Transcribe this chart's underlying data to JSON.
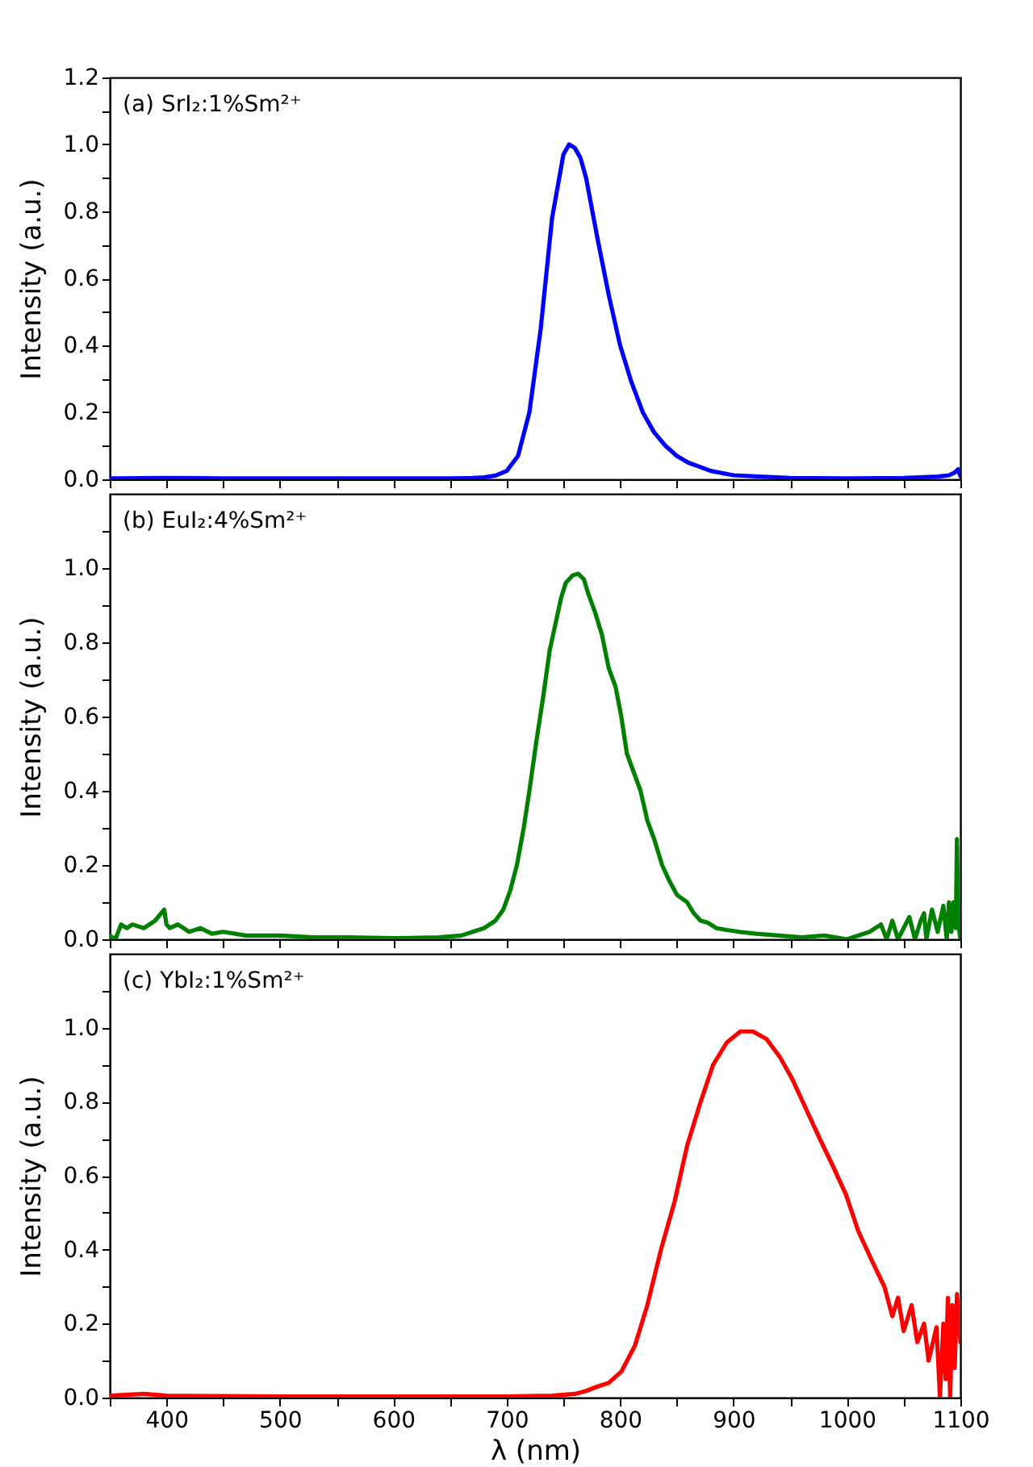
{
  "chart_data": [
    {
      "type": "line",
      "annotations": [
        "(a) SrI₂:1%Sm²⁺"
      ],
      "ylabel": "Intensity (a.u.)",
      "tick_labels": "y",
      "xlim": [
        350,
        1100
      ],
      "xticks": [
        {
          "value": 350,
          "label": null
        },
        400,
        {
          "value": 450,
          "label": null
        },
        500,
        {
          "value": 550,
          "label": null
        },
        600,
        {
          "value": 650,
          "label": null
        },
        700,
        {
          "value": 750,
          "label": null
        },
        800,
        {
          "value": 850,
          "label": null
        },
        900,
        {
          "value": 950,
          "label": null
        },
        1000,
        {
          "value": 1050,
          "label": null
        },
        1100
      ],
      "ylim": [
        0,
        1.2
      ],
      "yticks": [
        {
          "value": 0,
          "label": "0.0"
        },
        {
          "value": 0.1,
          "label": null
        },
        0.2,
        {
          "value": 0.3,
          "label": null
        },
        0.4,
        {
          "value": 0.5,
          "label": null
        },
        0.6,
        {
          "value": 0.7,
          "label": null
        },
        0.8,
        {
          "value": 0.9,
          "label": null
        },
        {
          "value": 1,
          "label": "1.0"
        },
        {
          "value": 1.1,
          "label": null
        },
        1.2
      ],
      "series": [
        {
          "color": "#0000ff",
          "x": [
            350,
            400,
            450,
            500,
            550,
            600,
            650,
            670,
            680,
            690,
            700,
            710,
            720,
            730,
            740,
            750,
            755,
            760,
            765,
            770,
            780,
            790,
            800,
            810,
            820,
            830,
            840,
            850,
            860,
            880,
            900,
            950,
            1000,
            1050,
            1080,
            1090,
            1095,
            1098,
            1100
          ],
          "values": [
            0.003,
            0.004,
            0.003,
            0.003,
            0.003,
            0.003,
            0.003,
            0.004,
            0.006,
            0.011,
            0.025,
            0.07,
            0.2,
            0.45,
            0.78,
            0.97,
            1.0,
            0.99,
            0.96,
            0.9,
            0.72,
            0.55,
            0.4,
            0.29,
            0.2,
            0.14,
            0.1,
            0.07,
            0.05,
            0.025,
            0.012,
            0.004,
            0.003,
            0.004,
            0.008,
            0.012,
            0.02,
            0.03,
            0.01
          ]
        }
      ]
    },
    {
      "type": "line",
      "annotations": [
        "(b) EuI₂:4%Sm²⁺"
      ],
      "ylabel": "Intensity (a.u.)",
      "tick_labels": "y",
      "xlim": [
        350,
        1100
      ],
      "xticks": [
        {
          "value": 350,
          "label": null
        },
        400,
        {
          "value": 450,
          "label": null
        },
        500,
        {
          "value": 550,
          "label": null
        },
        600,
        {
          "value": 650,
          "label": null
        },
        700,
        {
          "value": 750,
          "label": null
        },
        800,
        {
          "value": 850,
          "label": null
        },
        900,
        {
          "value": 950,
          "label": null
        },
        1000,
        {
          "value": 1050,
          "label": null
        },
        1100
      ],
      "ylim": [
        0,
        1.2
      ],
      "yticks": [
        {
          "value": 0,
          "label": "0.0"
        },
        {
          "value": 0.1,
          "label": null
        },
        0.2,
        {
          "value": 0.3,
          "label": null
        },
        0.4,
        {
          "value": 0.5,
          "label": null
        },
        0.6,
        {
          "value": 0.7,
          "label": null
        },
        0.8,
        {
          "value": 0.9,
          "label": null
        },
        {
          "value": 1,
          "label": "1.0"
        },
        {
          "value": 1.1,
          "label": null
        }
      ],
      "series": [
        {
          "color": "#008000",
          "x": [
            350,
            355,
            360,
            365,
            370,
            380,
            390,
            398,
            400,
            403,
            410,
            420,
            430,
            440,
            450,
            470,
            500,
            530,
            560,
            600,
            640,
            660,
            670,
            680,
            690,
            697,
            703,
            709,
            715,
            720,
            726,
            732,
            738,
            743,
            748,
            752,
            758,
            763,
            768,
            772,
            778,
            784,
            790,
            796,
            801,
            806,
            812,
            818,
            824,
            830,
            837,
            843,
            850,
            859,
            865,
            871,
            877,
            885,
            894,
            905,
            920,
            940,
            960,
            980,
            1000,
            1020,
            1030,
            1035,
            1040,
            1045,
            1055,
            1060,
            1065,
            1068,
            1070,
            1075,
            1080,
            1085,
            1088,
            1090,
            1092,
            1094,
            1096,
            1097,
            1098,
            1100
          ],
          "values": [
            0.01,
            0.0,
            0.04,
            0.03,
            0.04,
            0.03,
            0.05,
            0.08,
            0.04,
            0.03,
            0.04,
            0.02,
            0.03,
            0.015,
            0.02,
            0.01,
            0.01,
            0.005,
            0.005,
            0.003,
            0.005,
            0.01,
            0.02,
            0.03,
            0.05,
            0.08,
            0.13,
            0.2,
            0.3,
            0.4,
            0.53,
            0.65,
            0.78,
            0.85,
            0.92,
            0.96,
            0.98,
            0.985,
            0.97,
            0.93,
            0.88,
            0.82,
            0.73,
            0.68,
            0.6,
            0.5,
            0.45,
            0.4,
            0.32,
            0.27,
            0.2,
            0.16,
            0.12,
            0.1,
            0.07,
            0.05,
            0.045,
            0.03,
            0.025,
            0.02,
            0.015,
            0.01,
            0.005,
            0.01,
            0.0,
            0.02,
            0.04,
            0.0,
            0.05,
            0.0,
            0.06,
            0.0,
            0.05,
            0.07,
            0.0,
            0.08,
            0.02,
            0.09,
            0.0,
            0.1,
            0.02,
            0.1,
            0.03,
            0.27,
            0.05,
            0.0
          ]
        }
      ]
    },
    {
      "type": "line",
      "annotations": [
        "(c) YbI₂:1%Sm²⁺"
      ],
      "ylabel": "Intensity (a.u.)",
      "xlabel": "λ (nm)",
      "xlim": [
        350,
        1100
      ],
      "xticks": [
        {
          "value": 350,
          "label": null
        },
        400,
        {
          "value": 450,
          "label": null
        },
        500,
        {
          "value": 550,
          "label": null
        },
        600,
        {
          "value": 650,
          "label": null
        },
        700,
        {
          "value": 750,
          "label": null
        },
        800,
        {
          "value": 850,
          "label": null
        },
        900,
        {
          "value": 950,
          "label": null
        },
        1000,
        {
          "value": 1050,
          "label": null
        },
        1100
      ],
      "ylim": [
        0,
        1.2
      ],
      "yticks": [
        {
          "value": 0,
          "label": "0.0"
        },
        {
          "value": 0.1,
          "label": null
        },
        0.2,
        {
          "value": 0.3,
          "label": null
        },
        0.4,
        {
          "value": 0.5,
          "label": null
        },
        0.6,
        {
          "value": 0.7,
          "label": null
        },
        0.8,
        {
          "value": 0.9,
          "label": null
        },
        {
          "value": 1,
          "label": "1.0"
        },
        {
          "value": 1.1,
          "label": null
        }
      ],
      "series": [
        {
          "color": "#ff0000",
          "x": [
            350,
            380,
            400,
            450,
            500,
            550,
            600,
            650,
            700,
            740,
            760,
            770,
            780,
            790,
            801,
            813,
            824,
            836,
            848,
            859,
            871,
            882,
            894,
            906,
            917,
            929,
            941,
            952,
            964,
            976,
            987,
            999,
            1010,
            1022,
            1033,
            1040,
            1045,
            1050,
            1057,
            1062,
            1068,
            1072,
            1079,
            1082,
            1085,
            1087,
            1089,
            1091,
            1093,
            1095,
            1097,
            1100
          ],
          "values": [
            0.005,
            0.01,
            0.005,
            0.004,
            0.003,
            0.003,
            0.003,
            0.003,
            0.003,
            0.005,
            0.01,
            0.018,
            0.03,
            0.04,
            0.07,
            0.14,
            0.25,
            0.4,
            0.53,
            0.68,
            0.8,
            0.9,
            0.96,
            0.99,
            0.99,
            0.97,
            0.92,
            0.86,
            0.78,
            0.7,
            0.63,
            0.55,
            0.45,
            0.37,
            0.3,
            0.22,
            0.27,
            0.18,
            0.25,
            0.15,
            0.2,
            0.1,
            0.19,
            0.0,
            0.2,
            0.05,
            0.27,
            0.0,
            0.25,
            0.08,
            0.28,
            0.15
          ]
        }
      ]
    }
  ]
}
